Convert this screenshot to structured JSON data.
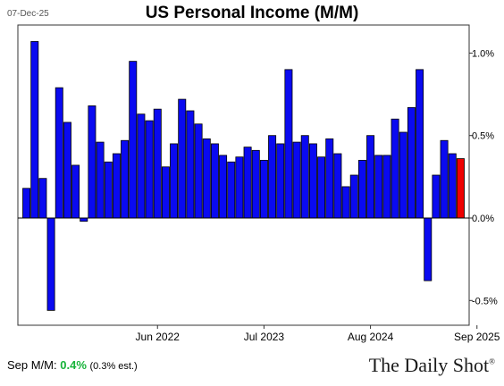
{
  "header": {
    "date": "07-Dec-25"
  },
  "footer": {
    "label": "Sep M/M:",
    "value": "0.4%",
    "est": "(0.3% est.)",
    "brand": "The Daily Shot",
    "brand_mark": "®"
  },
  "colors": {
    "bar": "#0a0af0",
    "highlight": "#ee0000",
    "value_text": "#17b33a"
  },
  "chart_data": {
    "type": "bar",
    "title": "US Personal Income (M/M)",
    "xlabel": "",
    "ylabel": "",
    "unit": "%",
    "ylim": [
      -0.65,
      1.17
    ],
    "y_ticks": [
      {
        "value": 1.0,
        "label": "1.0%"
      },
      {
        "value": 0.5,
        "label": "0.5%"
      },
      {
        "value": 0.0,
        "label": "0.0%"
      },
      {
        "value": -0.5,
        "label": "-0.5%"
      }
    ],
    "x_ticks": [
      {
        "index": 16,
        "label": "Jun 2022"
      },
      {
        "index": 29,
        "label": "Jul 2023"
      },
      {
        "index": 42,
        "label": "Aug 2024"
      },
      {
        "index": 55,
        "label": "Sep 2025"
      }
    ],
    "series": [
      {
        "values": [
          0.18,
          1.07,
          0.24,
          -0.56,
          0.79,
          0.58,
          0.32,
          -0.02,
          0.68,
          0.46,
          0.34,
          0.39,
          0.47,
          0.95,
          0.63,
          0.59,
          0.66,
          0.31,
          0.45,
          0.72,
          0.65,
          0.57,
          0.48,
          0.45,
          0.38,
          0.34,
          0.37,
          0.43,
          0.41,
          0.35,
          0.5,
          0.45,
          0.9,
          0.46,
          0.5,
          0.45,
          0.37,
          0.48,
          0.39,
          0.19,
          0.26,
          0.35,
          0.5,
          0.38,
          0.38,
          0.6,
          0.52,
          0.67,
          0.9,
          -0.38,
          0.26,
          0.47,
          0.39,
          0.36
        ],
        "highlight_last": true
      }
    ],
    "grid": false,
    "legend": "none"
  }
}
